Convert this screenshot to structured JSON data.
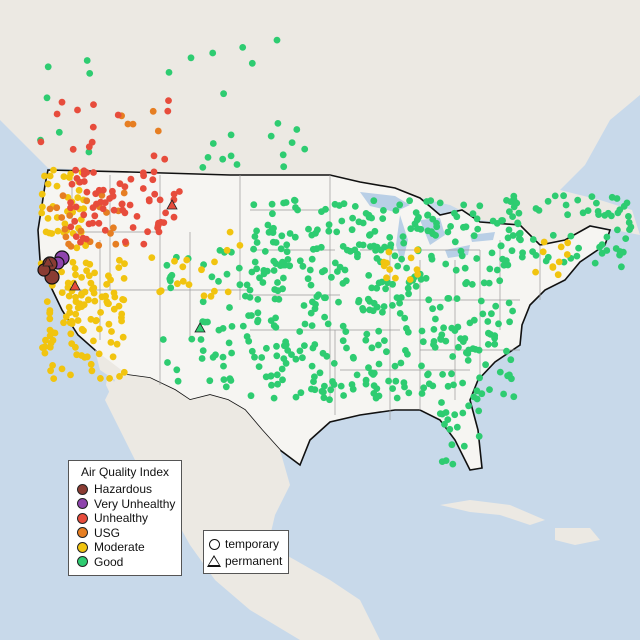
{
  "map": {
    "colors": {
      "ocean": "#c8d9ea",
      "land": "#ece9e3",
      "us_land": "#f6f5f2",
      "border": "#111111",
      "state_line": "#9a9a9a",
      "lake": "#b9cfe6"
    }
  },
  "legend_aqi": {
    "title": "Air Quality Index",
    "items": [
      {
        "label": "Hazardous",
        "color": "#8a3c33"
      },
      {
        "label": "Very Unhealthy",
        "color": "#8e44ad"
      },
      {
        "label": "Unhealthy",
        "color": "#e74c3c"
      },
      {
        "label": "USG",
        "color": "#e67e22"
      },
      {
        "label": "Moderate",
        "color": "#f1c40f"
      },
      {
        "label": "Good",
        "color": "#2ecc71"
      }
    ]
  },
  "legend_type": {
    "items": [
      {
        "label": "temporary",
        "shape": "circle"
      },
      {
        "label": "permanent",
        "shape": "triangle"
      }
    ]
  }
}
